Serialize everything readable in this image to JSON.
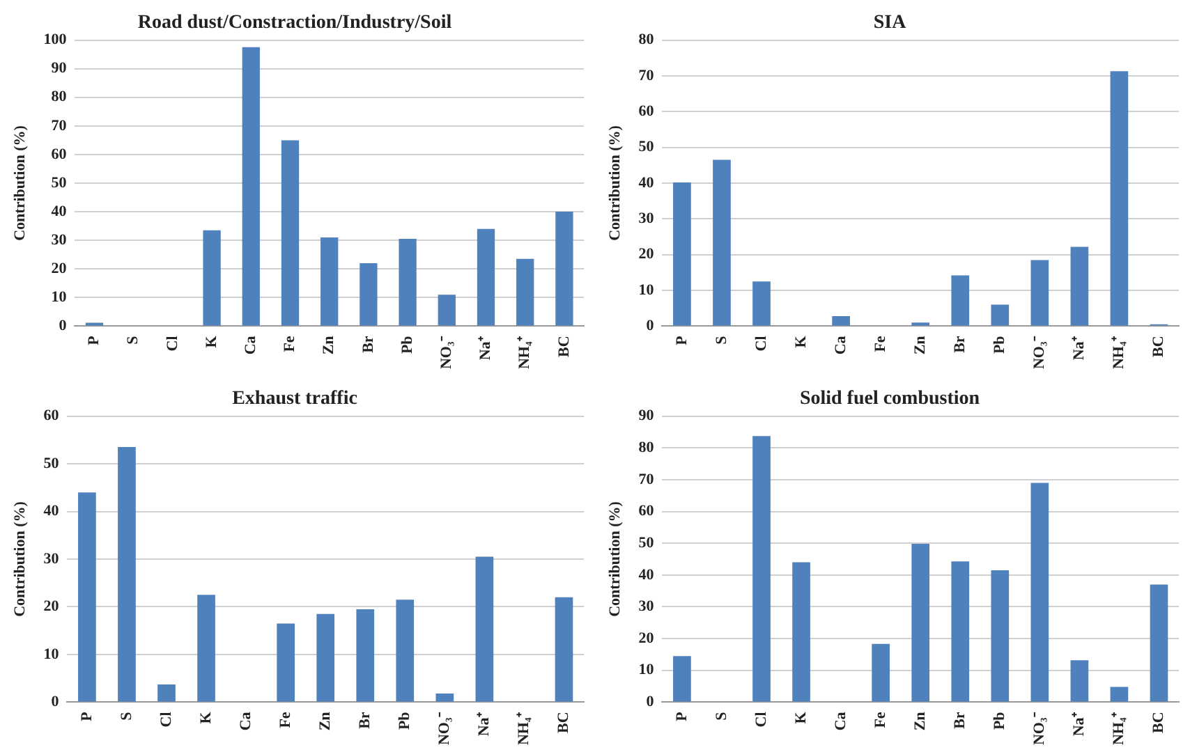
{
  "chart_data": [
    {
      "type": "bar",
      "title": "Road dust/Constraction/Industry/Soil",
      "ylabel": "Contribution (%)",
      "categories": [
        "P",
        "S",
        "Cl",
        "K",
        "Ca",
        "Fe",
        "Zn",
        "Br",
        "Pb",
        "NO₃⁻",
        "Na⁺",
        "NH₄⁺",
        "BC"
      ],
      "values": [
        1.2,
        0,
        0,
        33.5,
        97.5,
        65,
        31,
        22,
        30.5,
        11,
        34,
        23.5,
        40
      ],
      "color": "#4f81bd",
      "ylim": [
        0,
        100
      ],
      "yticks": [
        0,
        10,
        20,
        30,
        40,
        50,
        60,
        70,
        80,
        90,
        100
      ],
      "grid": "y"
    },
    {
      "type": "bar",
      "title": "SIA",
      "ylabel": "Contribution (%)",
      "categories": [
        "P",
        "S",
        "Cl",
        "K",
        "Ca",
        "Fe",
        "Zn",
        "Br",
        "Pb",
        "NO₃⁻",
        "Na⁺",
        "NH₄⁺",
        "BC"
      ],
      "values": [
        40.2,
        46.5,
        12.5,
        0,
        2.8,
        0,
        1,
        14.2,
        6,
        18.5,
        22.2,
        71.3,
        0.5
      ],
      "color": "#4f81bd",
      "ylim": [
        0,
        80
      ],
      "yticks": [
        0,
        10,
        20,
        30,
        40,
        50,
        60,
        70,
        80
      ],
      "grid": "y"
    },
    {
      "type": "bar",
      "title": "Exhaust traffic",
      "ylabel": "Contribution (%)",
      "categories": [
        "P",
        "S",
        "Cl",
        "K",
        "Ca",
        "Fe",
        "Zn",
        "Br",
        "Pb",
        "NO₃⁻",
        "Na⁺",
        "NH₄⁺",
        "BC"
      ],
      "values": [
        44,
        53.5,
        3.7,
        22.5,
        0,
        16.5,
        18.5,
        19.5,
        21.5,
        1.8,
        30.5,
        0,
        22
      ],
      "color": "#4f81bd",
      "ylim": [
        0,
        60
      ],
      "yticks": [
        0,
        10,
        20,
        30,
        40,
        50,
        60
      ],
      "grid": "y"
    },
    {
      "type": "bar",
      "title": "Solid fuel combustion",
      "ylabel": "Contribution (%)",
      "categories": [
        "P",
        "S",
        "Cl",
        "K",
        "Ca",
        "Fe",
        "Zn",
        "Br",
        "Pb",
        "NO₃⁻",
        "Na⁺",
        "NH₄⁺",
        "BC"
      ],
      "values": [
        14.5,
        0,
        83.7,
        44,
        0,
        18.3,
        49.8,
        44.3,
        41.5,
        69,
        13.2,
        4.8,
        37
      ],
      "color": "#4f81bd",
      "ylim": [
        0,
        90
      ],
      "yticks": [
        0,
        10,
        20,
        30,
        40,
        50,
        60,
        70,
        80,
        90
      ],
      "grid": "y"
    }
  ]
}
